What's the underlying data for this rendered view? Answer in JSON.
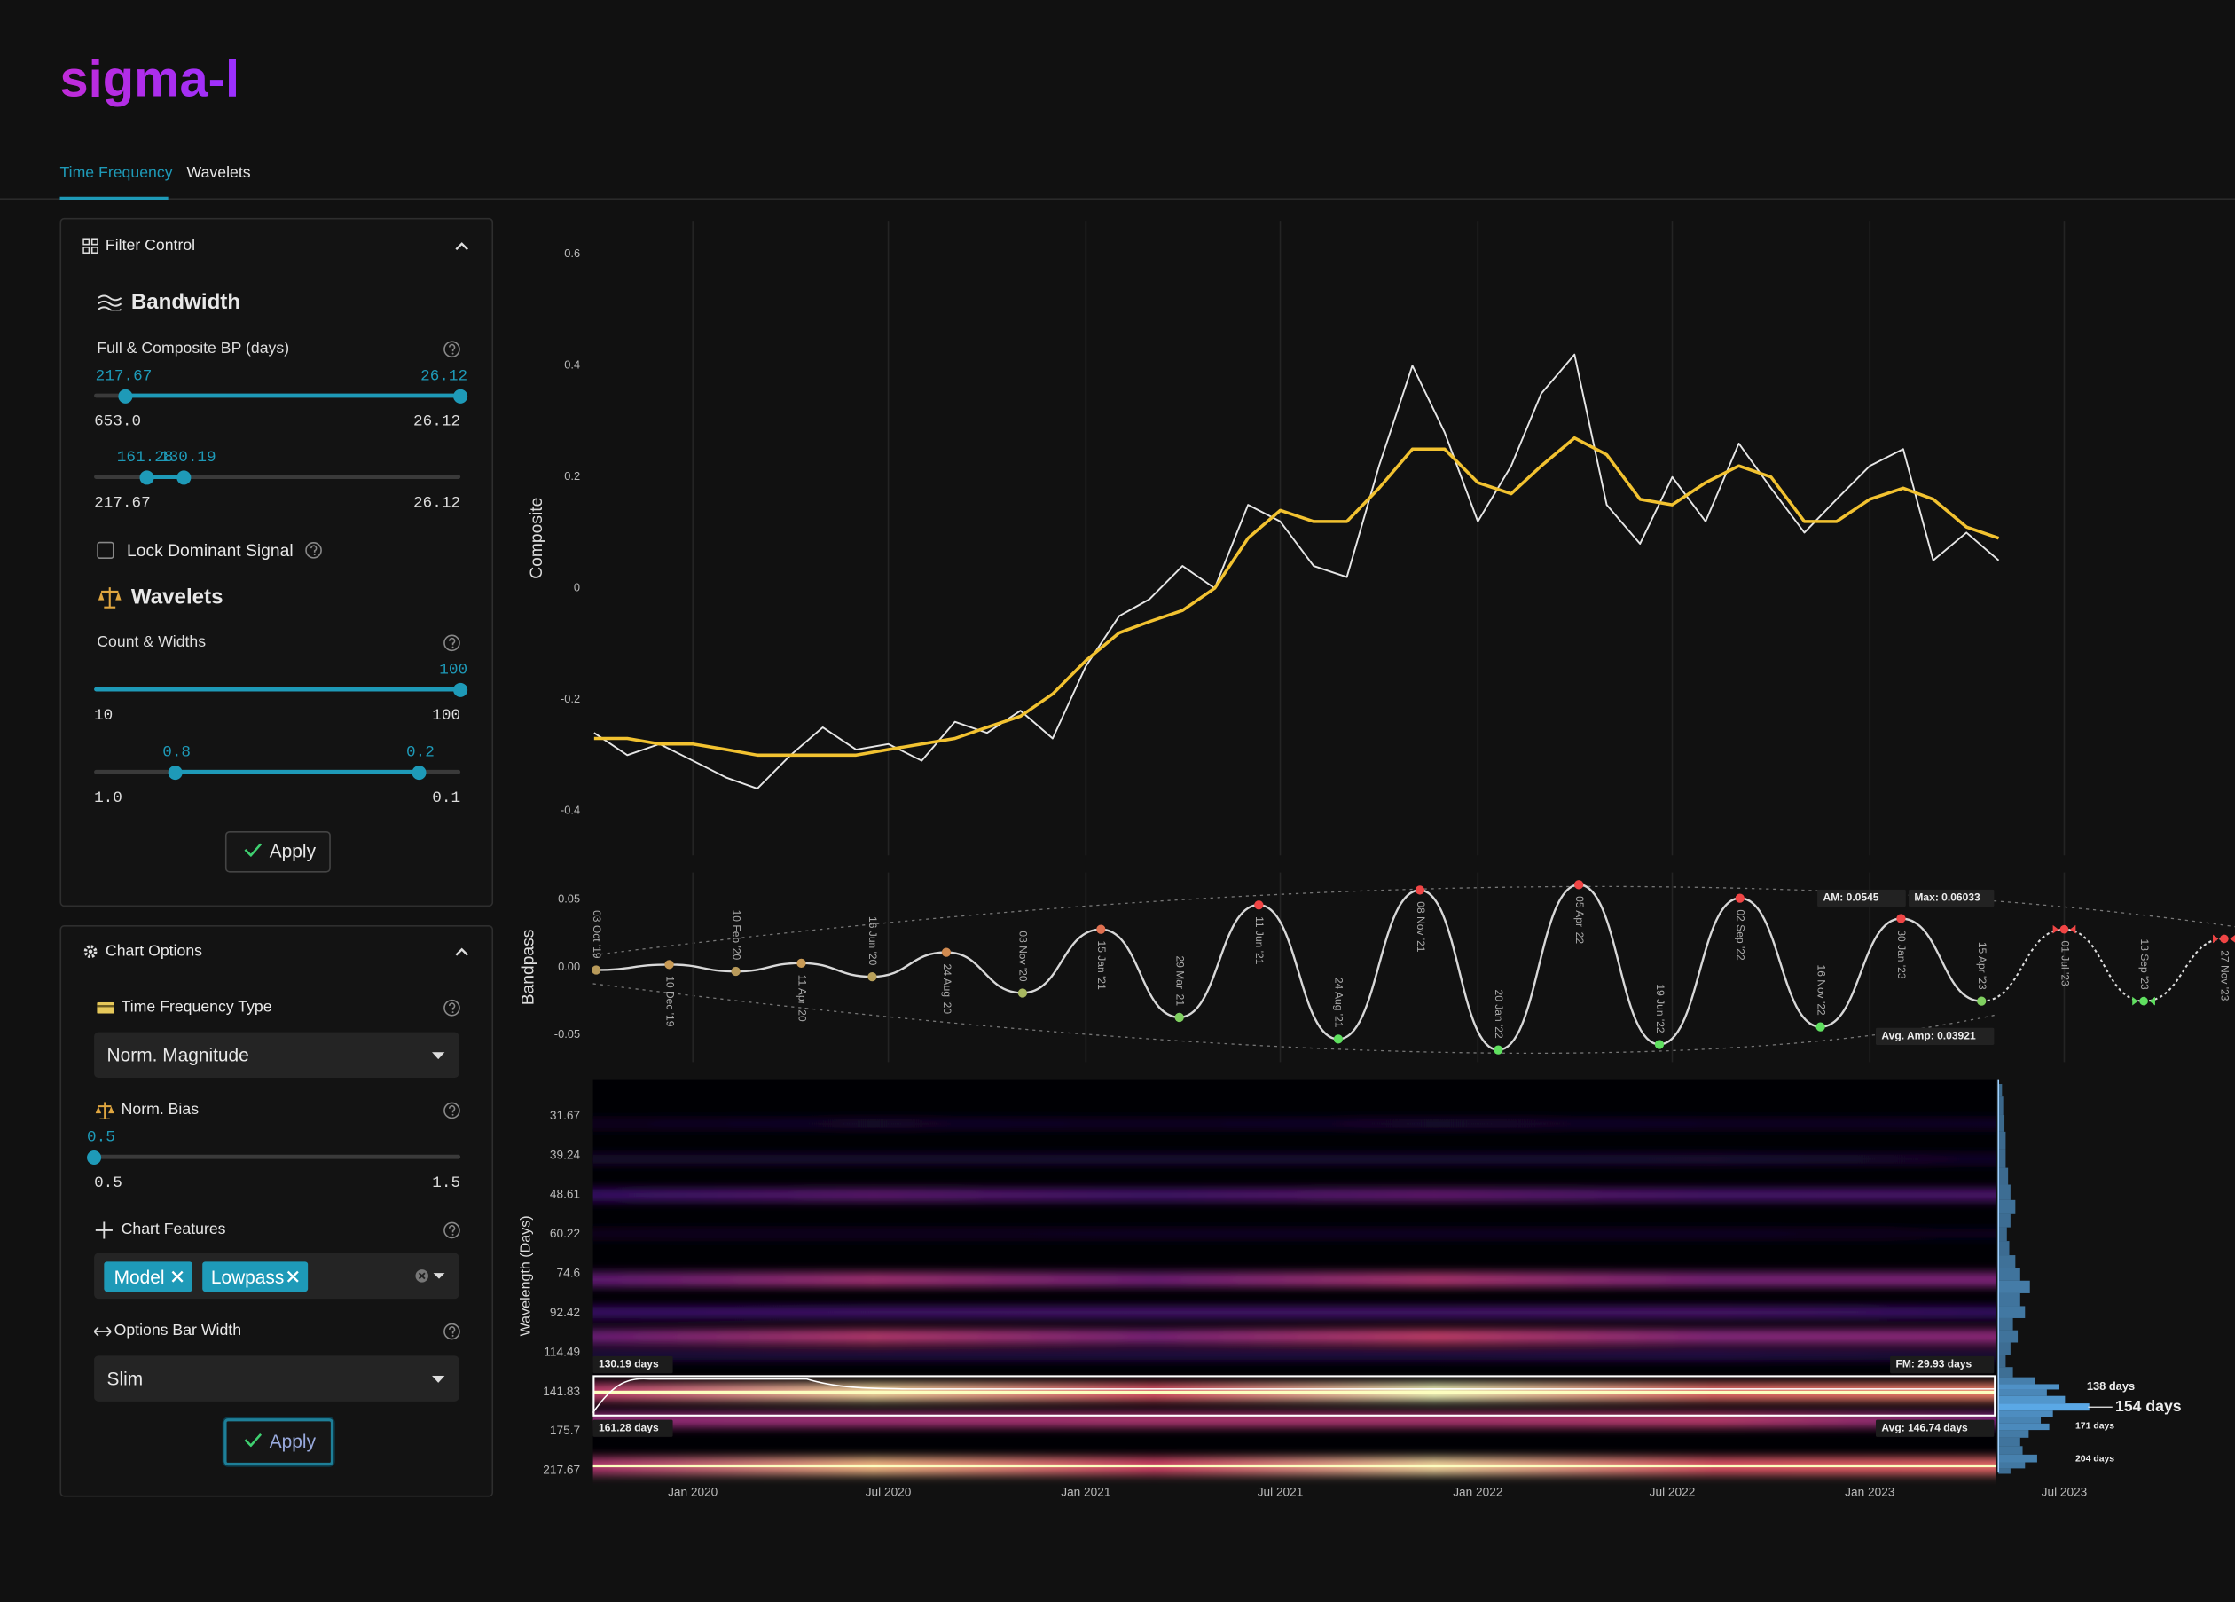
{
  "header": {
    "logo": "sigma-l"
  },
  "tabs": [
    "Time Frequency",
    "Wavelets"
  ],
  "filter_control": {
    "title": "Filter Control",
    "bandwidth": {
      "title": "Bandwidth",
      "label": "Full & Composite BP (days)",
      "full_slider": {
        "low": "217.67",
        "high": "26.12",
        "min": "653.0",
        "max": "26.12"
      },
      "composite_slider": {
        "low": "161.28",
        "high": "130.19",
        "min": "217.67",
        "max": "26.12"
      }
    },
    "lock_dominant_signal": "Lock Dominant Signal",
    "wavelets": {
      "title": "Wavelets",
      "label": "Count & Widths",
      "count_slider": {
        "high": "100",
        "min": "10",
        "max": "100"
      },
      "width_slider": {
        "low": "0.8",
        "high": "0.2",
        "min": "1.0",
        "max": "0.1"
      }
    },
    "apply": "Apply"
  },
  "chart_options": {
    "title": "Chart Options",
    "time_frequency_type": {
      "label": "Time Frequency Type",
      "selected": "Norm. Magnitude"
    },
    "norm_bias": {
      "label": "Norm. Bias",
      "value": "0.5",
      "min": "0.5",
      "max": "1.5"
    },
    "chart_features": {
      "label": "Chart Features",
      "tags": [
        "Model",
        "Lowpass"
      ]
    },
    "options_bar_width": {
      "label": "Options Bar Width",
      "selected": "Slim"
    },
    "apply": "Apply"
  },
  "chart_data": [
    {
      "type": "line",
      "ylabel": "Composite",
      "xlim": [
        "2019-09-30",
        "2023-12-07"
      ],
      "ylim": [
        -0.48,
        0.66
      ],
      "yticks": [
        0.6,
        0.4,
        0.2,
        0,
        -0.2,
        -0.4
      ],
      "xgrid": true,
      "x": [
        "2019-10",
        "2019-11",
        "2019-12",
        "2020-01",
        "2020-02",
        "2020-03",
        "2020-04",
        "2020-05",
        "2020-06",
        "2020-07",
        "2020-08",
        "2020-09",
        "2020-10",
        "2020-11",
        "2020-12",
        "2021-01",
        "2021-02",
        "2021-03",
        "2021-04",
        "2021-05",
        "2021-06",
        "2021-07",
        "2021-08",
        "2021-09",
        "2021-10",
        "2021-11",
        "2021-12",
        "2022-01",
        "2022-02",
        "2022-03",
        "2022-04",
        "2022-05",
        "2022-06",
        "2022-07",
        "2022-08",
        "2022-09",
        "2022-10",
        "2022-11",
        "2022-12",
        "2023-01",
        "2023-02",
        "2023-03",
        "2023-04",
        "2023-05"
      ],
      "series": [
        {
          "color": "#e6e6e6",
          "values": [
            -0.26,
            -0.3,
            -0.28,
            -0.31,
            -0.34,
            -0.36,
            -0.3,
            -0.25,
            -0.29,
            -0.28,
            -0.31,
            -0.24,
            -0.26,
            -0.22,
            -0.27,
            -0.14,
            -0.05,
            -0.02,
            0.04,
            0.0,
            0.15,
            0.12,
            0.04,
            0.02,
            0.22,
            0.4,
            0.28,
            0.12,
            0.22,
            0.35,
            0.42,
            0.15,
            0.08,
            0.2,
            0.12,
            0.26,
            0.18,
            0.1,
            0.16,
            0.22,
            0.25,
            0.05,
            0.1,
            0.05
          ]
        },
        {
          "color": "#f2c230",
          "values": [
            -0.27,
            -0.27,
            -0.28,
            -0.28,
            -0.29,
            -0.3,
            -0.3,
            -0.3,
            -0.3,
            -0.29,
            -0.28,
            -0.27,
            -0.25,
            -0.23,
            -0.19,
            -0.13,
            -0.08,
            -0.06,
            -0.04,
            0.0,
            0.09,
            0.14,
            0.12,
            0.12,
            0.18,
            0.25,
            0.25,
            0.19,
            0.17,
            0.22,
            0.27,
            0.24,
            0.16,
            0.15,
            0.19,
            0.22,
            0.2,
            0.12,
            0.12,
            0.16,
            0.18,
            0.16,
            0.11,
            0.09
          ]
        }
      ]
    },
    {
      "type": "bandpass",
      "ylabel": "Bandpass",
      "xlim": [
        "2019-09-30",
        "2023-12-07"
      ],
      "ylim": [
        -0.07,
        0.07
      ],
      "yticks": [
        0.05,
        {
          "value": 0,
          "label": "0.00"
        },
        -0.05
      ],
      "line_color": "#d8d8d8",
      "x": [
        "2019-10-03",
        "2019-12-10",
        "2020-02-10",
        "2020-04-11",
        "2020-06-16",
        "2020-08-24",
        "2020-11-03",
        "2021-01-15",
        "2021-03-29",
        "2021-06-11",
        "2021-08-24",
        "2021-11-08",
        "2022-01-20",
        "2022-04-05",
        "2022-06-19",
        "2022-09-02",
        "2022-11-16",
        "2023-01-30",
        "2023-04-15"
      ],
      "x_labels": [
        "03 Oct '19",
        "10 Dec '19",
        "10 Feb '20",
        "11 Apr '20",
        "16 Jun '20",
        "24 Aug '20",
        "03 Nov '20",
        "15 Jan '21",
        "29 Mar '21",
        "11 Jun '21",
        "24 Aug '21",
        "08 Nov '21",
        "20 Jan '22",
        "05 Apr '22",
        "19 Jun '22",
        "02 Sep '22",
        "16 Nov '22",
        "30 Jan '23",
        "15 Apr '23"
      ],
      "values": [
        -0.002,
        0.002,
        -0.003,
        0.003,
        -0.007,
        0.011,
        -0.019,
        0.028,
        -0.037,
        0.046,
        -0.053,
        0.057,
        -0.061,
        0.061,
        -0.057,
        0.051,
        -0.044,
        0.036,
        -0.025
      ],
      "point_colors": [
        "#b89a5a",
        "#c89a55",
        "#b89a5a",
        "#c89a55",
        "#b8a05a",
        "#d08a50",
        "#a8b860",
        "#e07050",
        "#7fd060",
        "#f04545",
        "#60e060",
        "#f04545",
        "#60e060",
        "#f04545",
        "#60e060",
        "#f04545",
        "#60e060",
        "#f04545",
        "#80d060"
      ],
      "projection": {
        "x": [
          "2023-07-01",
          "2023-09-13",
          "2023-11-27"
        ],
        "x_labels": [
          "01 Jul '23",
          "13 Sep '23",
          "27 Nov '23"
        ],
        "values": [
          0.028,
          -0.025,
          0.021
        ],
        "colors": [
          "#f04545",
          "#60e060",
          "#f04545"
        ]
      },
      "annotations": {
        "am": "AM: 0.0545",
        "max": "Max: 0.06033",
        "avg_amp": "Avg. Amp: 0.03921"
      }
    },
    {
      "type": "spectrogram",
      "ylabel": "Wavelength (Days)",
      "xlim": [
        "2019-09-30",
        "2023-12-07"
      ],
      "ylim": [
        25.9,
        220
      ],
      "log": true,
      "yticks": [
        31.67,
        39.24,
        48.61,
        60.22,
        74.6,
        92.42,
        114.49,
        141.83,
        175.7,
        217.67
      ],
      "xticks": [
        {
          "value": "2020-01-01",
          "label": "Jan 2020"
        },
        {
          "value": "2020-07-01",
          "label": "Jul 2020"
        },
        {
          "value": "2021-01-01",
          "label": "Jan 2021"
        },
        {
          "value": "2021-07-01",
          "label": "Jul 2021"
        },
        {
          "value": "2022-01-01",
          "label": "Jan 2022"
        },
        {
          "value": "2022-07-01",
          "label": "Jul 2022"
        },
        {
          "value": "2023-01-01",
          "label": "Jan 2023"
        },
        {
          "value": "2023-07-01",
          "label": "Jul 2023"
        }
      ],
      "bands": [
        33,
        40,
        48.6,
        60,
        77,
        92,
        105,
        116,
        142,
        165,
        212
      ],
      "intensity": [
        0.12,
        0.15,
        0.4,
        0.1,
        0.6,
        0.35,
        0.65,
        0.2,
        1.0,
        0.7,
        0.95
      ],
      "band_edges": [
        {
          "value": 130.19,
          "label": "130.19 days"
        },
        {
          "value": 161.28,
          "label": "161.28 days"
        }
      ],
      "annotations": {
        "fm": "FM: 29.93 days",
        "avg": "Avg: 146.74 days"
      },
      "spectrum": {
        "color": "#5aa8e6",
        "wavelengths": [
          27,
          30,
          33,
          36,
          40,
          44,
          48,
          52,
          56,
          60,
          65,
          70,
          75,
          80,
          86,
          92,
          98,
          105,
          112,
          120,
          128,
          134,
          138,
          142,
          148,
          154,
          160,
          166,
          171,
          178,
          186,
          195,
          204,
          212,
          218
        ],
        "values": [
          3,
          4,
          5,
          6,
          6,
          8,
          10,
          14,
          10,
          7,
          9,
          14,
          18,
          26,
          18,
          22,
          12,
          16,
          10,
          6,
          12,
          30,
          50,
          40,
          55,
          75,
          45,
          35,
          42,
          25,
          18,
          20,
          32,
          22,
          10
        ],
        "peak_labels": [
          {
            "value": 138,
            "label": "138 days"
          },
          {
            "value": 154,
            "label": "154 days"
          },
          {
            "value": 171,
            "label": "171 days"
          },
          {
            "value": 204,
            "label": "204 days"
          }
        ]
      }
    }
  ]
}
